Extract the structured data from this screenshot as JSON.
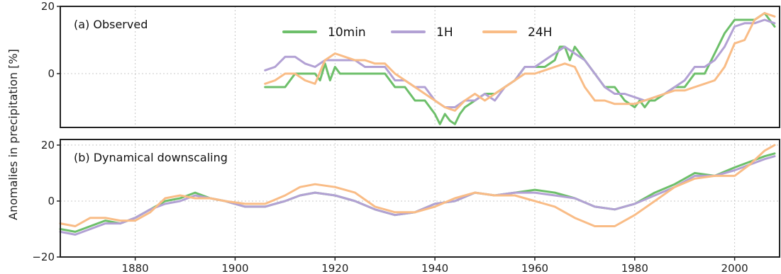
{
  "chart_data": {
    "type": "line",
    "ylabel": "Anomalies in precipitation [%]",
    "xlim": [
      1865,
      2009
    ],
    "x_ticks": [
      1880,
      1900,
      1920,
      1940,
      1960,
      1980,
      2000
    ],
    "legend": {
      "placement": "top-center",
      "entries": [
        "10min",
        "1H",
        "24H"
      ]
    },
    "colors": {
      "10min": "#6dbf6a",
      "1H": "#b2a1d4",
      "24H": "#f9bc86"
    },
    "grid": true,
    "panels": [
      {
        "label": "(a) Observed",
        "ylim": [
          -16,
          20
        ],
        "yticks": [
          0,
          20
        ],
        "series": [
          {
            "name": "10min",
            "color": "#6dbf6a",
            "x": [
              1906,
              1908,
              1910,
              1912,
              1914,
              1916,
              1917,
              1918,
              1919,
              1920,
              1921,
              1922,
              1924,
              1926,
              1928,
              1930,
              1932,
              1934,
              1936,
              1938,
              1940,
              1941,
              1942,
              1943,
              1944,
              1945,
              1946,
              1948,
              1950,
              1952,
              1954,
              1956,
              1958,
              1960,
              1962,
              1964,
              1965,
              1966,
              1967,
              1968,
              1970,
              1972,
              1974,
              1976,
              1978,
              1980,
              1981,
              1982,
              1983,
              1984,
              1986,
              1988,
              1990,
              1992,
              1994,
              1996,
              1998,
              2000,
              2002,
              2004,
              2006,
              2007,
              2008
            ],
            "y": [
              -4,
              -4,
              -4,
              0,
              0,
              0,
              -2,
              3,
              -2,
              2,
              0,
              0,
              0,
              0,
              0,
              0,
              -4,
              -4,
              -8,
              -8,
              -12,
              -15,
              -12,
              -14,
              -15,
              -12,
              -10,
              -8,
              -6,
              -6,
              -4,
              -2,
              2,
              2,
              2,
              4,
              8,
              8,
              4,
              8,
              4,
              0,
              -4,
              -4,
              -8,
              -10,
              -8,
              -10,
              -8,
              -8,
              -6,
              -4,
              -4,
              0,
              0,
              6,
              12,
              16,
              16,
              16,
              18,
              16,
              14
            ]
          },
          {
            "name": "1H",
            "color": "#b2a1d4",
            "x": [
              1906,
              1908,
              1910,
              1912,
              1914,
              1916,
              1918,
              1920,
              1922,
              1924,
              1926,
              1928,
              1930,
              1932,
              1934,
              1936,
              1938,
              1940,
              1942,
              1944,
              1946,
              1948,
              1950,
              1952,
              1954,
              1956,
              1958,
              1960,
              1962,
              1964,
              1966,
              1968,
              1970,
              1972,
              1974,
              1976,
              1978,
              1980,
              1982,
              1984,
              1986,
              1988,
              1990,
              1992,
              1994,
              1996,
              1998,
              2000,
              2002,
              2004,
              2006,
              2008
            ],
            "y": [
              1,
              2,
              5,
              5,
              3,
              2,
              4,
              4,
              4,
              4,
              2,
              2,
              2,
              -2,
              -2,
              -4,
              -4,
              -8,
              -10,
              -10,
              -8,
              -8,
              -6,
              -8,
              -4,
              -2,
              2,
              2,
              4,
              6,
              8,
              6,
              4,
              0,
              -4,
              -6,
              -6,
              -7,
              -8,
              -7,
              -6,
              -4,
              -2,
              2,
              2,
              4,
              8,
              14,
              15,
              15,
              16,
              15
            ]
          },
          {
            "name": "24H",
            "color": "#f9bc86",
            "x": [
              1906,
              1908,
              1910,
              1912,
              1914,
              1916,
              1918,
              1920,
              1922,
              1924,
              1926,
              1928,
              1930,
              1932,
              1934,
              1936,
              1938,
              1940,
              1942,
              1944,
              1946,
              1948,
              1950,
              1952,
              1954,
              1956,
              1958,
              1960,
              1962,
              1964,
              1966,
              1968,
              1970,
              1972,
              1974,
              1976,
              1978,
              1980,
              1982,
              1984,
              1986,
              1988,
              1990,
              1992,
              1994,
              1996,
              1998,
              2000,
              2002,
              2004,
              2006,
              2008
            ],
            "y": [
              -3,
              -2,
              0,
              0,
              -2,
              -3,
              4,
              6,
              5,
              4,
              4,
              3,
              3,
              0,
              -2,
              -4,
              -6,
              -8,
              -10,
              -11,
              -8,
              -6,
              -8,
              -6,
              -4,
              -2,
              0,
              0,
              1,
              2,
              3,
              2,
              -4,
              -8,
              -8,
              -9,
              -9,
              -9,
              -8,
              -7,
              -6,
              -5,
              -5,
              -4,
              -3,
              -2,
              2,
              9,
              10,
              16,
              18,
              17
            ]
          }
        ]
      },
      {
        "label": "(b) Dynamical downscaling",
        "ylim": [
          -20,
          22
        ],
        "yticks": [
          -20,
          0,
          20
        ],
        "series": [
          {
            "name": "10min",
            "color": "#6dbf6a",
            "x": [
              1865,
              1868,
              1871,
              1874,
              1877,
              1880,
              1883,
              1886,
              1889,
              1892,
              1895,
              1898,
              1902,
              1906,
              1910,
              1913,
              1916,
              1920,
              1924,
              1928,
              1932,
              1936,
              1940,
              1944,
              1948,
              1952,
              1956,
              1960,
              1964,
              1968,
              1972,
              1976,
              1980,
              1984,
              1988,
              1992,
              1996,
              2000,
              2003,
              2006,
              2008
            ],
            "y": [
              -10,
              -11,
              -9,
              -7,
              -8,
              -6,
              -3,
              0,
              1,
              3,
              1,
              0,
              -2,
              -2,
              0,
              2,
              3,
              2,
              0,
              -3,
              -5,
              -4,
              -1,
              0,
              3,
              2,
              3,
              4,
              3,
              1,
              -2,
              -3,
              -1,
              3,
              6,
              10,
              9,
              12,
              14,
              16,
              17
            ]
          },
          {
            "name": "1H",
            "color": "#b2a1d4",
            "x": [
              1865,
              1868,
              1871,
              1874,
              1877,
              1880,
              1883,
              1886,
              1889,
              1892,
              1895,
              1898,
              1902,
              1906,
              1910,
              1913,
              1916,
              1920,
              1924,
              1928,
              1932,
              1936,
              1940,
              1944,
              1948,
              1952,
              1956,
              1960,
              1964,
              1968,
              1972,
              1976,
              1980,
              1984,
              1988,
              1992,
              1996,
              2000,
              2003,
              2006,
              2008
            ],
            "y": [
              -11,
              -12,
              -10,
              -8,
              -8,
              -6,
              -3,
              -1,
              0,
              2,
              1,
              0,
              -2,
              -2,
              0,
              2,
              3,
              2,
              0,
              -3,
              -5,
              -4,
              -1,
              0,
              3,
              2,
              3,
              3,
              2,
              1,
              -2,
              -3,
              -1,
              2,
              5,
              9,
              9,
              11,
              13,
              15,
              16
            ]
          },
          {
            "name": "24H",
            "color": "#f9bc86",
            "x": [
              1865,
              1868,
              1871,
              1874,
              1877,
              1880,
              1883,
              1886,
              1889,
              1892,
              1895,
              1898,
              1902,
              1906,
              1910,
              1913,
              1916,
              1920,
              1924,
              1928,
              1932,
              1936,
              1940,
              1944,
              1948,
              1952,
              1956,
              1960,
              1964,
              1968,
              1972,
              1976,
              1980,
              1984,
              1988,
              1992,
              1996,
              2000,
              2003,
              2006,
              2008
            ],
            "y": [
              -8,
              -9,
              -6,
              -6,
              -7,
              -7,
              -4,
              1,
              2,
              1,
              1,
              0,
              -1,
              -1,
              2,
              5,
              6,
              5,
              3,
              -2,
              -4,
              -4,
              -2,
              1,
              3,
              2,
              2,
              0,
              -2,
              -6,
              -9,
              -9,
              -5,
              0,
              5,
              8,
              9,
              9,
              13,
              18,
              20
            ]
          }
        ]
      }
    ]
  }
}
